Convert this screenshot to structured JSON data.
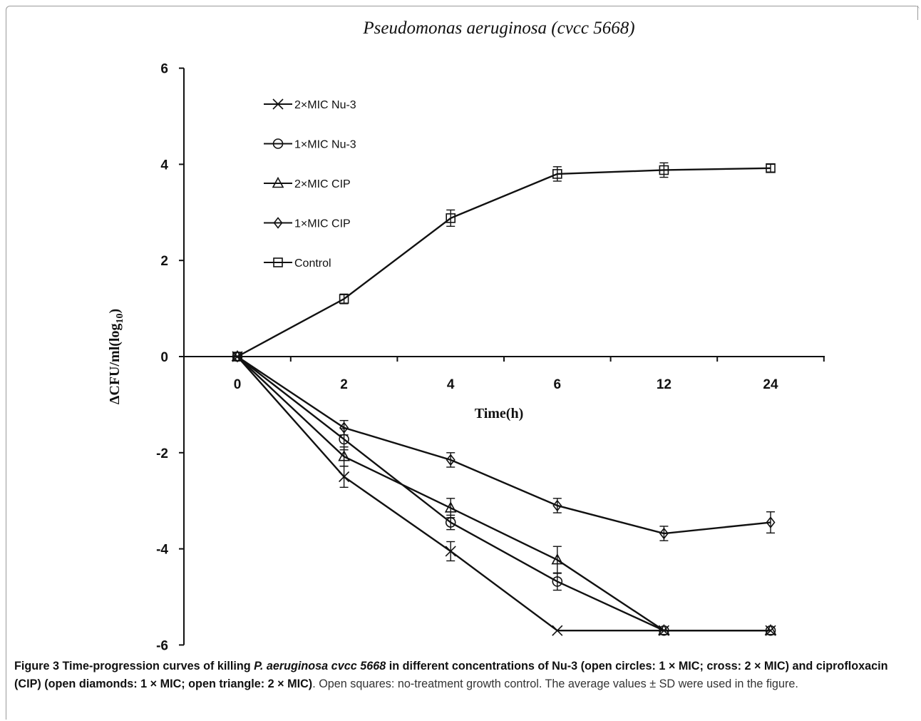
{
  "chart_data": {
    "type": "line",
    "title": "Pseudomonas aeruginosa (cvcc 5668)",
    "xlabel": "Time(h)",
    "ylabel": "ΔCFU/ml(log10)",
    "ylabel_main": "ΔCFU/ml(log",
    "ylabel_sub": "10",
    "ylabel_close": ")",
    "categories": [
      "0",
      "2",
      "4",
      "6",
      "12",
      "24"
    ],
    "y_ticks": [
      "6",
      "4",
      "2",
      "0",
      "-2",
      "-4",
      "-6"
    ],
    "ylim": [
      -6,
      6
    ],
    "grid": false,
    "legend_position": "top-left",
    "series": [
      {
        "name": "2×MIC Nu-3",
        "marker": "cross",
        "values": [
          0,
          -2.5,
          -4.05,
          -5.7,
          -5.7,
          -5.7
        ],
        "errors": [
          0,
          0.22,
          0.2,
          0,
          0,
          0
        ]
      },
      {
        "name": "1×MIC Nu-3",
        "marker": "circle",
        "values": [
          0,
          -1.72,
          -3.45,
          -4.68,
          -5.7,
          -5.7
        ],
        "errors": [
          0,
          0.22,
          0.15,
          0.18,
          0,
          0
        ]
      },
      {
        "name": "2×MIC CIP",
        "marker": "triangle",
        "values": [
          0,
          -2.08,
          -3.15,
          -4.23,
          -5.7,
          -5.7
        ],
        "errors": [
          0,
          0.2,
          0.2,
          0.28,
          0,
          0
        ]
      },
      {
        "name": "1×MIC CIP",
        "marker": "diamond",
        "values": [
          0,
          -1.48,
          -2.15,
          -3.1,
          -3.68,
          -3.45
        ],
        "errors": [
          0,
          0.15,
          0.15,
          0.15,
          0.15,
          0.22
        ]
      },
      {
        "name": "Control",
        "marker": "square",
        "values": [
          0,
          1.2,
          2.88,
          3.8,
          3.88,
          3.92
        ],
        "errors": [
          0,
          0.1,
          0.17,
          0.15,
          0.15,
          0.08
        ]
      }
    ]
  },
  "caption": {
    "bold_part1": "Figure 3 Time-progression curves of killing ",
    "italic_part": "P. aeruginosa cvcc 5668",
    "bold_part2": " in different concentrations of Nu-3 (open circles: 1 × MIC; cross: 2 × MIC) and ciprofloxacin (CIP) (open diamonds: 1 × MIC; open triangle: 2 × MIC)",
    "rest": ". Open squares: no-treatment growth control. The average values ± SD were used in the figure."
  }
}
